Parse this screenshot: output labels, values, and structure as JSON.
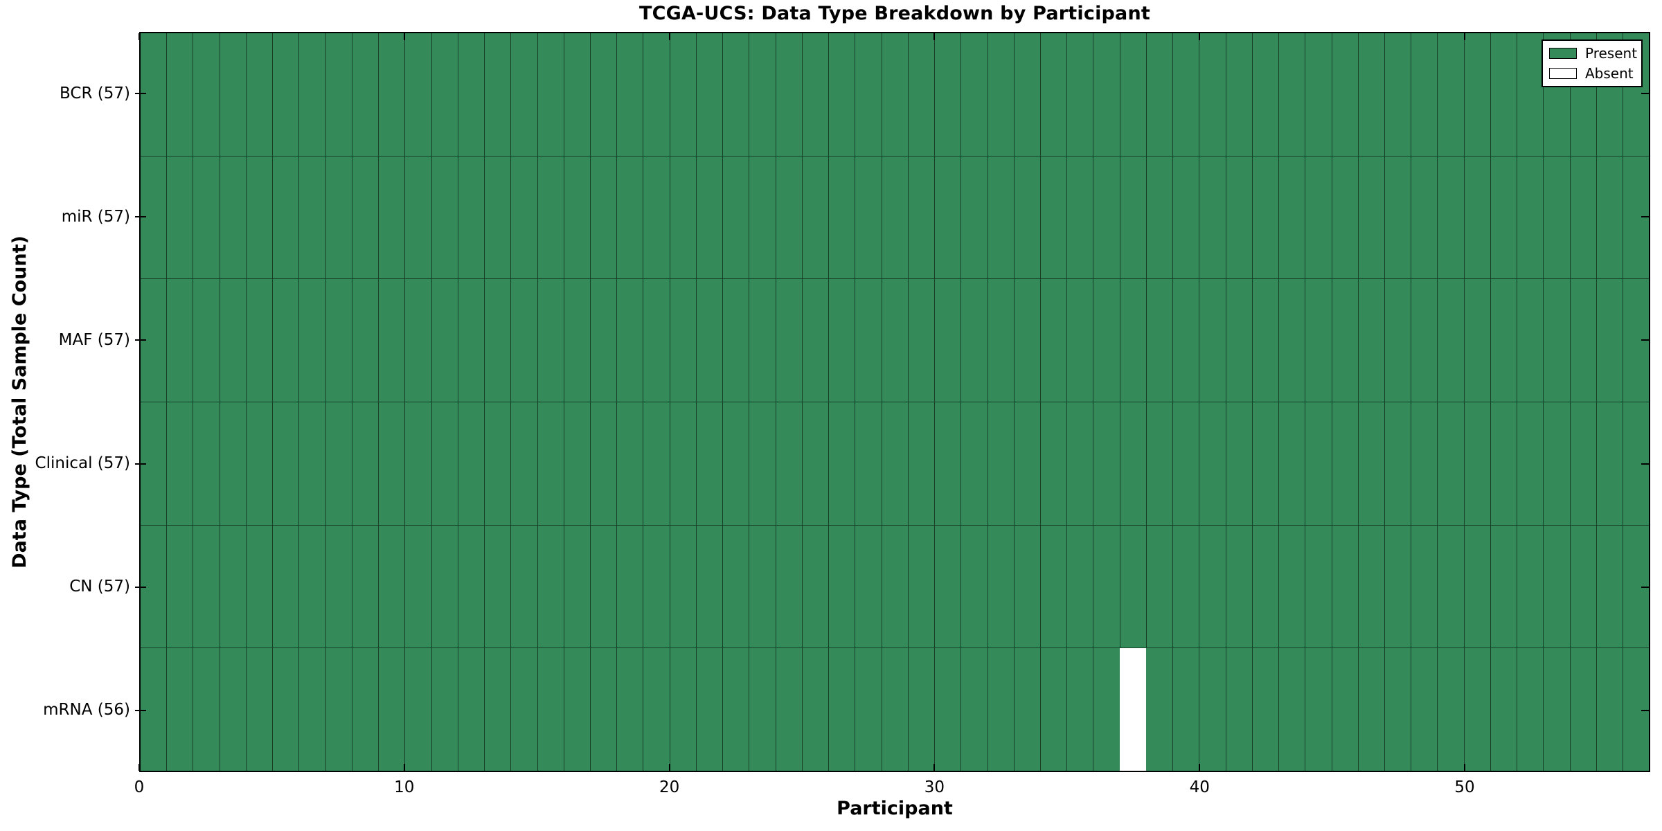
{
  "chart_data": {
    "type": "heatmap",
    "title": "TCGA-UCS: Data Type Breakdown by Participant",
    "xlabel": "Participant",
    "ylabel": "Data Type (Total Sample Count)",
    "n_participants": 57,
    "xlim": [
      0,
      57
    ],
    "x_ticks": [
      0,
      10,
      20,
      30,
      40,
      50
    ],
    "rows": [
      {
        "data_type": "BCR",
        "label": "BCR (57)",
        "present_count": 57,
        "absent_participants": []
      },
      {
        "data_type": "miR",
        "label": "miR (57)",
        "present_count": 57,
        "absent_participants": []
      },
      {
        "data_type": "MAF",
        "label": "MAF (57)",
        "present_count": 57,
        "absent_participants": []
      },
      {
        "data_type": "Clinical",
        "label": "Clinical (57)",
        "present_count": 57,
        "absent_participants": []
      },
      {
        "data_type": "CN",
        "label": "CN (57)",
        "present_count": 57,
        "absent_participants": []
      },
      {
        "data_type": "mRNA",
        "label": "mRNA (56)",
        "present_count": 56,
        "absent_participants": [
          37
        ]
      }
    ],
    "legend": [
      {
        "label": "Present",
        "color": "#348a58"
      },
      {
        "label": "Absent",
        "color": "#ffffff"
      }
    ],
    "colors": {
      "present": "#348a58",
      "absent": "#ffffff",
      "edge": "#000000",
      "background": "#ffffff"
    },
    "legend_position": "upper right",
    "grid": "cell-borders"
  }
}
